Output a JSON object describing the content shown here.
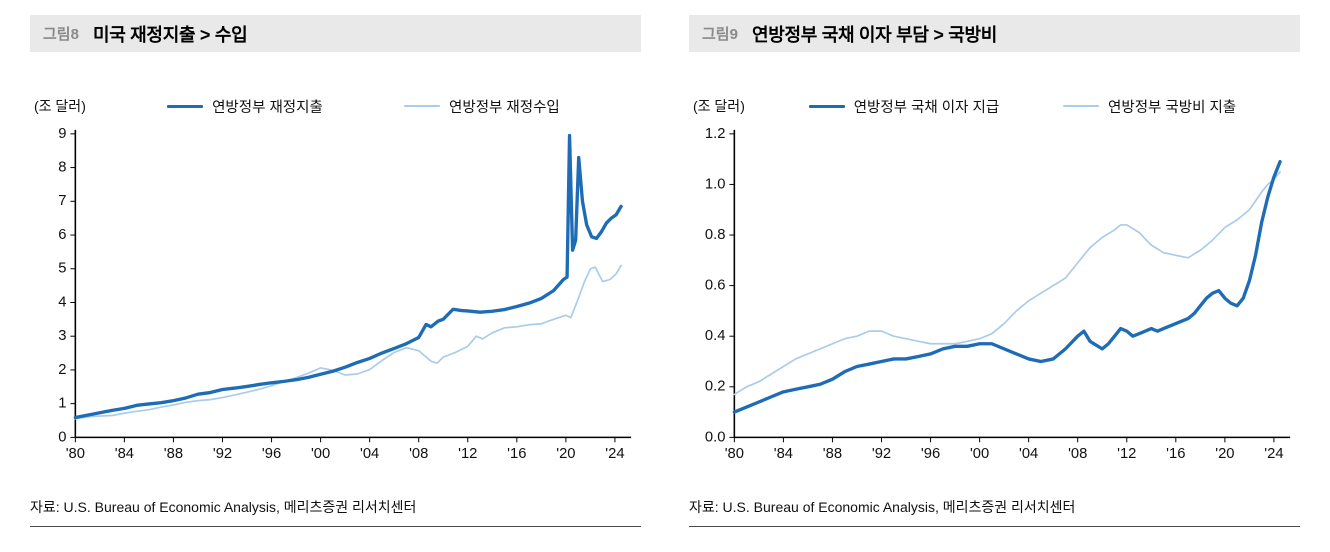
{
  "chart_data": [
    {
      "type": "line",
      "fig_label": "그림8",
      "title": "미국 재정지출 > 수입",
      "unit_label": "(조 달러)",
      "source": "자료: U.S. Bureau of Economic Analysis, 메리츠증권 리서치센터",
      "grid": false,
      "legend_position": "top",
      "xlim": [
        1980,
        2025
      ],
      "ylim": [
        0,
        9
      ],
      "yticks": [
        0,
        1,
        2,
        3,
        4,
        5,
        6,
        7,
        8,
        9
      ],
      "ytick_labels": [
        "0",
        "1",
        "2",
        "3",
        "4",
        "5",
        "6",
        "7",
        "8",
        "9"
      ],
      "xticks": [
        1980,
        1984,
        1988,
        1992,
        1996,
        2000,
        2004,
        2008,
        2012,
        2016,
        2020,
        2024
      ],
      "xtick_labels": [
        "'80",
        "'84",
        "'88",
        "'92",
        "'96",
        "'00",
        "'04",
        "'08",
        "'12",
        "'16",
        "'20",
        "'24"
      ],
      "series": [
        {
          "name": "연방정부 재정지출",
          "color": "#1e6cb5",
          "width": 3.4,
          "points": [
            [
              1980,
              0.59
            ],
            [
              1981,
              0.66
            ],
            [
              1982,
              0.73
            ],
            [
              1983,
              0.8
            ],
            [
              1984,
              0.86
            ],
            [
              1985,
              0.95
            ],
            [
              1986,
              0.99
            ],
            [
              1987,
              1.03
            ],
            [
              1988,
              1.09
            ],
            [
              1989,
              1.17
            ],
            [
              1990,
              1.28
            ],
            [
              1991,
              1.33
            ],
            [
              1992,
              1.42
            ],
            [
              1993,
              1.46
            ],
            [
              1994,
              1.51
            ],
            [
              1995,
              1.57
            ],
            [
              1996,
              1.62
            ],
            [
              1997,
              1.66
            ],
            [
              1998,
              1.71
            ],
            [
              1999,
              1.78
            ],
            [
              2000,
              1.87
            ],
            [
              2001,
              1.96
            ],
            [
              2002,
              2.08
            ],
            [
              2003,
              2.22
            ],
            [
              2004,
              2.34
            ],
            [
              2005,
              2.5
            ],
            [
              2006,
              2.64
            ],
            [
              2007,
              2.78
            ],
            [
              2008,
              2.96
            ],
            [
              2008.6,
              3.35
            ],
            [
              2009,
              3.28
            ],
            [
              2009.6,
              3.45
            ],
            [
              2010,
              3.5
            ],
            [
              2010.8,
              3.8
            ],
            [
              2011.5,
              3.76
            ],
            [
              2012,
              3.75
            ],
            [
              2013,
              3.71
            ],
            [
              2014,
              3.74
            ],
            [
              2015,
              3.79
            ],
            [
              2016,
              3.88
            ],
            [
              2017,
              3.98
            ],
            [
              2018,
              4.12
            ],
            [
              2019,
              4.35
            ],
            [
              2019.8,
              4.68
            ],
            [
              2020.1,
              4.75
            ],
            [
              2020.3,
              8.95
            ],
            [
              2020.55,
              5.55
            ],
            [
              2020.8,
              5.85
            ],
            [
              2021.05,
              8.3
            ],
            [
              2021.35,
              7.0
            ],
            [
              2021.7,
              6.3
            ],
            [
              2022.1,
              5.95
            ],
            [
              2022.5,
              5.9
            ],
            [
              2022.9,
              6.1
            ],
            [
              2023.3,
              6.35
            ],
            [
              2023.7,
              6.5
            ],
            [
              2024.1,
              6.6
            ],
            [
              2024.5,
              6.85
            ]
          ]
        },
        {
          "name": "연방정부 재정수입",
          "color": "#a9cce9",
          "width": 1.7,
          "points": [
            [
              1980,
              0.55
            ],
            [
              1981,
              0.61
            ],
            [
              1982,
              0.63
            ],
            [
              1983,
              0.65
            ],
            [
              1984,
              0.72
            ],
            [
              1985,
              0.77
            ],
            [
              1986,
              0.82
            ],
            [
              1987,
              0.9
            ],
            [
              1988,
              0.96
            ],
            [
              1989,
              1.04
            ],
            [
              1990,
              1.09
            ],
            [
              1991,
              1.12
            ],
            [
              1992,
              1.18
            ],
            [
              1993,
              1.26
            ],
            [
              1994,
              1.34
            ],
            [
              1995,
              1.43
            ],
            [
              1996,
              1.53
            ],
            [
              1997,
              1.65
            ],
            [
              1998,
              1.77
            ],
            [
              1999,
              1.9
            ],
            [
              2000,
              2.06
            ],
            [
              2001,
              1.99
            ],
            [
              2002,
              1.85
            ],
            [
              2003,
              1.88
            ],
            [
              2004,
              2.01
            ],
            [
              2005,
              2.28
            ],
            [
              2006,
              2.52
            ],
            [
              2007,
              2.66
            ],
            [
              2008,
              2.57
            ],
            [
              2009,
              2.26
            ],
            [
              2009.5,
              2.2
            ],
            [
              2010,
              2.38
            ],
            [
              2011,
              2.52
            ],
            [
              2012,
              2.7
            ],
            [
              2012.7,
              3.0
            ],
            [
              2013.2,
              2.92
            ],
            [
              2014,
              3.1
            ],
            [
              2015,
              3.25
            ],
            [
              2016,
              3.28
            ],
            [
              2017,
              3.34
            ],
            [
              2018,
              3.37
            ],
            [
              2019,
              3.5
            ],
            [
              2020,
              3.62
            ],
            [
              2020.4,
              3.55
            ],
            [
              2021,
              4.1
            ],
            [
              2021.5,
              4.6
            ],
            [
              2022,
              5.0
            ],
            [
              2022.4,
              5.05
            ],
            [
              2023,
              4.62
            ],
            [
              2023.6,
              4.68
            ],
            [
              2024.1,
              4.85
            ],
            [
              2024.5,
              5.1
            ]
          ]
        }
      ]
    },
    {
      "type": "line",
      "fig_label": "그림9",
      "title": "연방정부 국채 이자 부담 > 국방비",
      "unit_label": "(조 달러)",
      "source": "자료: U.S. Bureau of Economic Analysis, 메리츠증권 리서치센터",
      "grid": false,
      "legend_position": "top",
      "xlim": [
        1980,
        2025
      ],
      "ylim": [
        0,
        1.2
      ],
      "yticks": [
        0,
        0.2,
        0.4,
        0.6,
        0.8,
        1.0,
        1.2
      ],
      "ytick_labels": [
        "0.0",
        "0.2",
        "0.4",
        "0.6",
        "0.8",
        "1.0",
        "1.2"
      ],
      "xticks": [
        1980,
        1984,
        1988,
        1992,
        1996,
        2000,
        2004,
        2008,
        2012,
        2016,
        2020,
        2024
      ],
      "xtick_labels": [
        "'80",
        "'84",
        "'88",
        "'92",
        "'96",
        "'00",
        "'04",
        "'08",
        "'12",
        "'16",
        "'20",
        "'24"
      ],
      "series": [
        {
          "name": "연방정부 국채 이자 지급",
          "color": "#1e6cb5",
          "width": 3.4,
          "points": [
            [
              1980,
              0.1
            ],
            [
              1981,
              0.12
            ],
            [
              1982,
              0.14
            ],
            [
              1983,
              0.16
            ],
            [
              1984,
              0.18
            ],
            [
              1985,
              0.19
            ],
            [
              1986,
              0.2
            ],
            [
              1987,
              0.21
            ],
            [
              1988,
              0.23
            ],
            [
              1989,
              0.26
            ],
            [
              1990,
              0.28
            ],
            [
              1991,
              0.29
            ],
            [
              1992,
              0.3
            ],
            [
              1993,
              0.31
            ],
            [
              1994,
              0.31
            ],
            [
              1995,
              0.32
            ],
            [
              1996,
              0.33
            ],
            [
              1997,
              0.35
            ],
            [
              1998,
              0.36
            ],
            [
              1999,
              0.36
            ],
            [
              2000,
              0.37
            ],
            [
              2001,
              0.37
            ],
            [
              2002,
              0.35
            ],
            [
              2003,
              0.33
            ],
            [
              2004,
              0.31
            ],
            [
              2005,
              0.3
            ],
            [
              2006,
              0.31
            ],
            [
              2007,
              0.35
            ],
            [
              2008,
              0.4
            ],
            [
              2008.5,
              0.42
            ],
            [
              2009,
              0.38
            ],
            [
              2010,
              0.35
            ],
            [
              2010.5,
              0.37
            ],
            [
              2011,
              0.4
            ],
            [
              2011.5,
              0.43
            ],
            [
              2012,
              0.42
            ],
            [
              2012.5,
              0.4
            ],
            [
              2013,
              0.41
            ],
            [
              2014,
              0.43
            ],
            [
              2014.5,
              0.42
            ],
            [
              2015,
              0.43
            ],
            [
              2016,
              0.45
            ],
            [
              2017,
              0.47
            ],
            [
              2017.5,
              0.49
            ],
            [
              2018,
              0.52
            ],
            [
              2018.5,
              0.55
            ],
            [
              2019,
              0.57
            ],
            [
              2019.5,
              0.58
            ],
            [
              2020,
              0.55
            ],
            [
              2020.5,
              0.53
            ],
            [
              2021,
              0.52
            ],
            [
              2021.5,
              0.55
            ],
            [
              2022,
              0.62
            ],
            [
              2022.5,
              0.72
            ],
            [
              2023,
              0.85
            ],
            [
              2023.5,
              0.95
            ],
            [
              2024,
              1.03
            ],
            [
              2024.5,
              1.09
            ]
          ]
        },
        {
          "name": "연방정부 국방비 지출",
          "color": "#a9cce9",
          "width": 1.7,
          "points": [
            [
              1980,
              0.17
            ],
            [
              1981,
              0.2
            ],
            [
              1982,
              0.22
            ],
            [
              1983,
              0.25
            ],
            [
              1984,
              0.28
            ],
            [
              1985,
              0.31
            ],
            [
              1986,
              0.33
            ],
            [
              1987,
              0.35
            ],
            [
              1988,
              0.37
            ],
            [
              1989,
              0.39
            ],
            [
              1990,
              0.4
            ],
            [
              1991,
              0.42
            ],
            [
              1992,
              0.42
            ],
            [
              1993,
              0.4
            ],
            [
              1994,
              0.39
            ],
            [
              1995,
              0.38
            ],
            [
              1996,
              0.37
            ],
            [
              1997,
              0.37
            ],
            [
              1998,
              0.37
            ],
            [
              1999,
              0.38
            ],
            [
              2000,
              0.39
            ],
            [
              2001,
              0.41
            ],
            [
              2002,
              0.45
            ],
            [
              2003,
              0.5
            ],
            [
              2004,
              0.54
            ],
            [
              2005,
              0.57
            ],
            [
              2006,
              0.6
            ],
            [
              2007,
              0.63
            ],
            [
              2008,
              0.69
            ],
            [
              2009,
              0.75
            ],
            [
              2010,
              0.79
            ],
            [
              2011,
              0.82
            ],
            [
              2011.5,
              0.84
            ],
            [
              2012,
              0.84
            ],
            [
              2013,
              0.81
            ],
            [
              2014,
              0.76
            ],
            [
              2015,
              0.73
            ],
            [
              2016,
              0.72
            ],
            [
              2017,
              0.71
            ],
            [
              2018,
              0.74
            ],
            [
              2019,
              0.78
            ],
            [
              2020,
              0.83
            ],
            [
              2021,
              0.86
            ],
            [
              2022,
              0.9
            ],
            [
              2023,
              0.97
            ],
            [
              2023.5,
              1.0
            ],
            [
              2024,
              1.02
            ],
            [
              2024.5,
              1.05
            ]
          ]
        }
      ]
    }
  ]
}
